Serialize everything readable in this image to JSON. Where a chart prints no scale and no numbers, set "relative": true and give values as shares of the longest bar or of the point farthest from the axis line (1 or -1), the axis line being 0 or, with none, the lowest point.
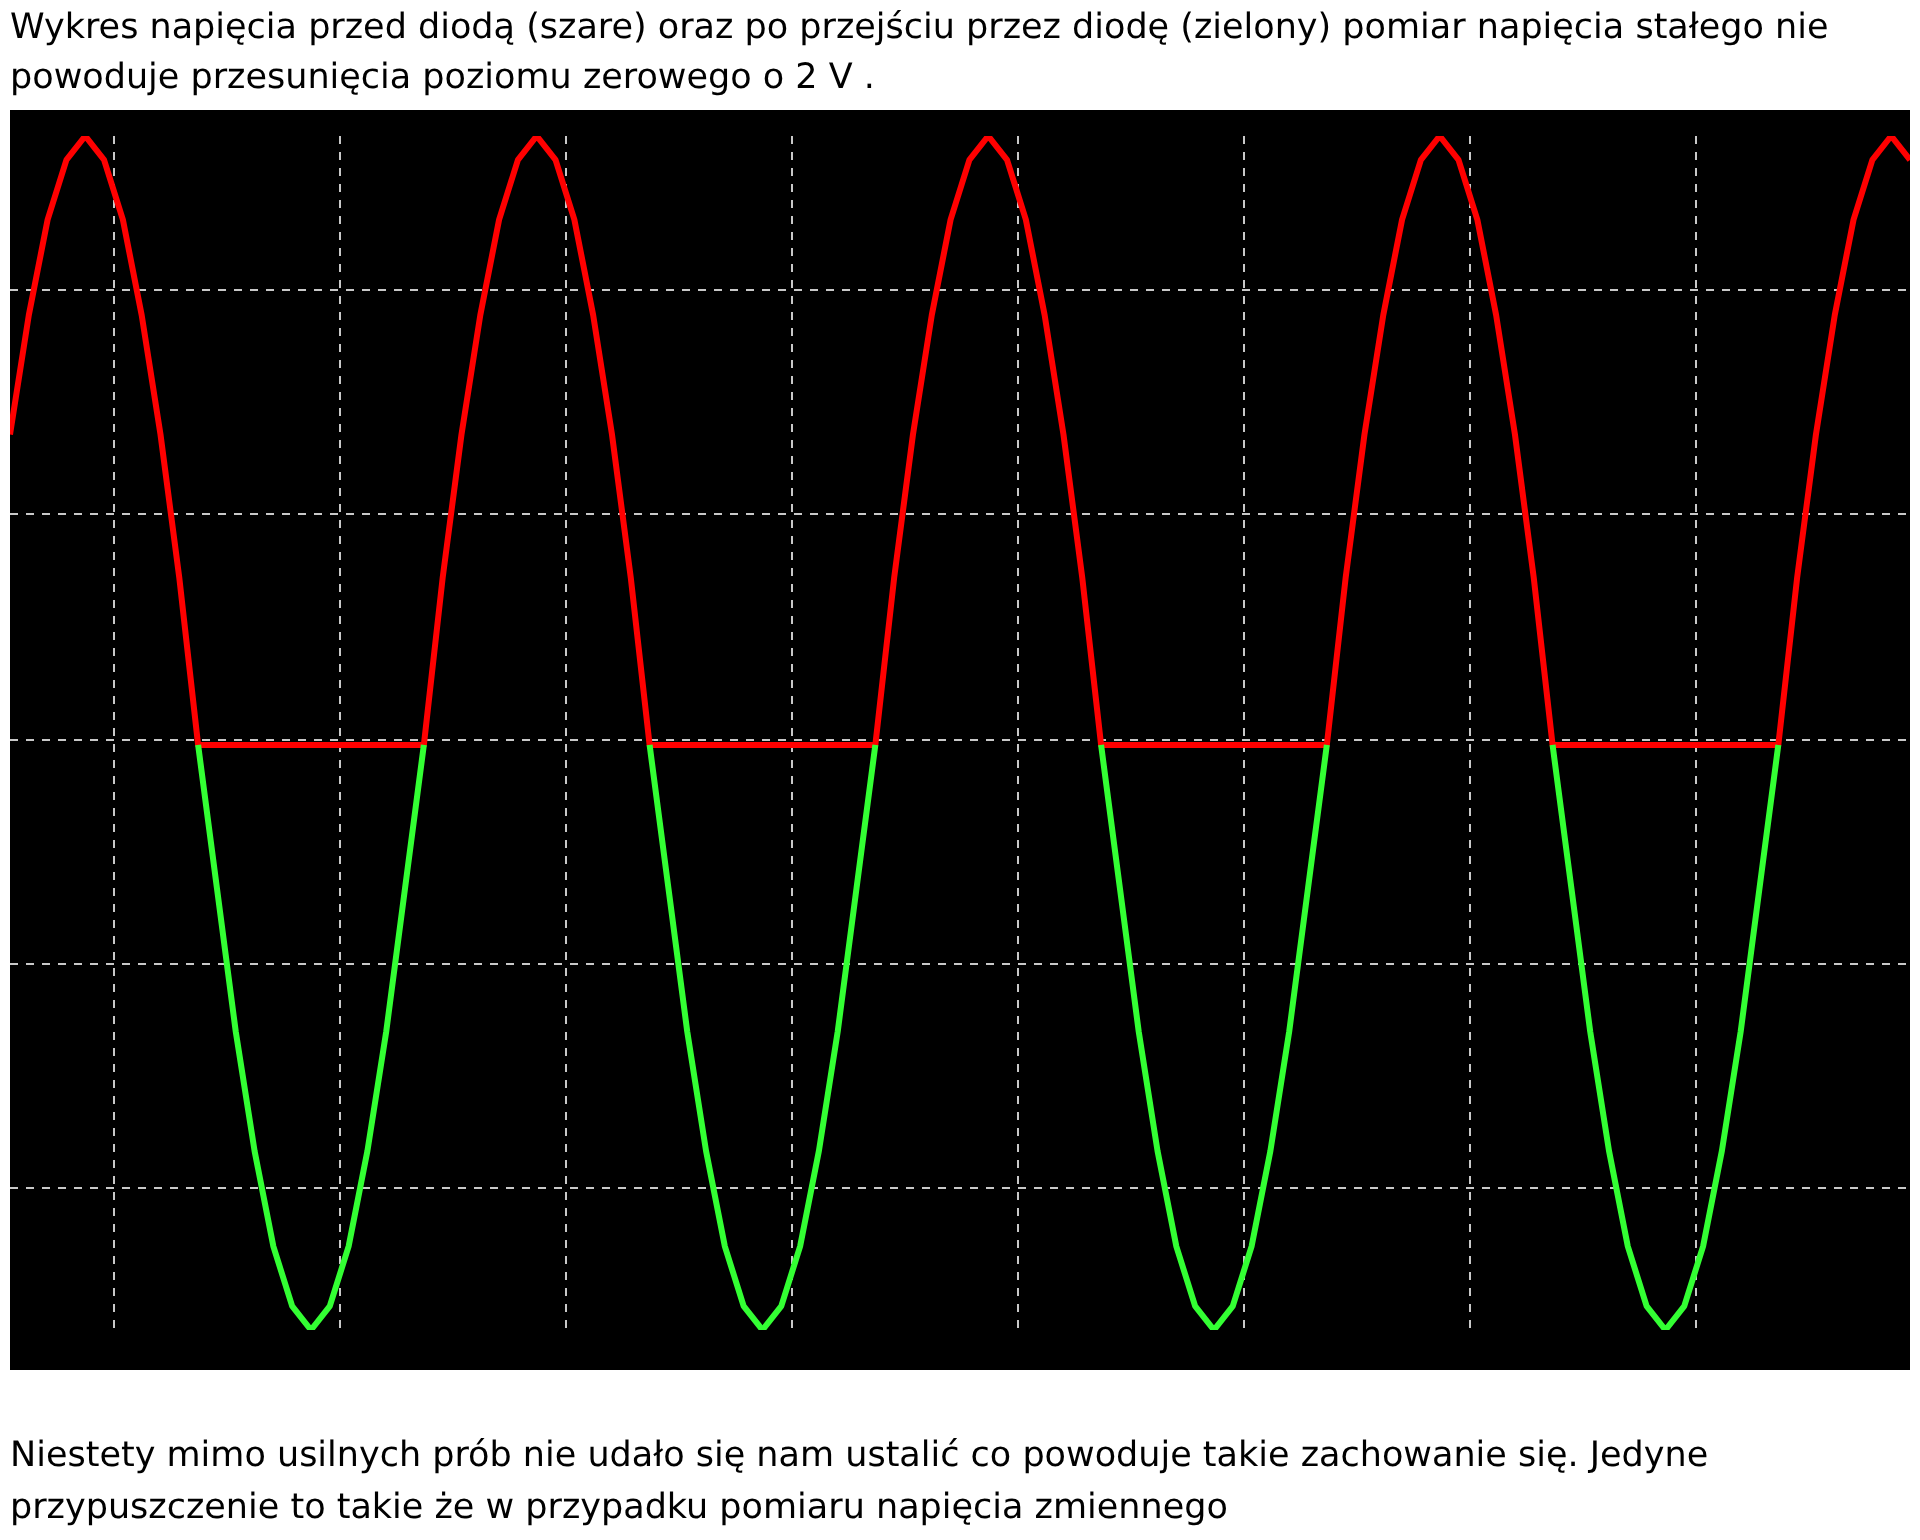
{
  "chart_data": {
    "type": "line",
    "title": "Wykres napięcia przed diodą (szare) oraz po przejściu przez diodę (zielony) pomiar napięcia stałego nie powoduje przesunięcia poziomu zerowego o 2 V .",
    "annotations": [
      "Niestety mimo usilnych prób nie udało się nam ustalić co powoduje takie zachowanie się. Jedyne przypuszczenie to takie że w przypadku pomiaru napięcia zmiennego"
    ],
    "relative": true,
    "grid": true,
    "legend": false,
    "categories": [
      null,
      null,
      null,
      null,
      null,
      null,
      null,
      null,
      null,
      null,
      null,
      null,
      null,
      null,
      null,
      null,
      null,
      null,
      null,
      null,
      null,
      null,
      null,
      null,
      null,
      null,
      null,
      null,
      null,
      null,
      null,
      null,
      null,
      null,
      null,
      null,
      null,
      null,
      null,
      null,
      null,
      null,
      null,
      null,
      null,
      null,
      null,
      null,
      null,
      null,
      null,
      null,
      null,
      null,
      null,
      null,
      null,
      null,
      null,
      null,
      null,
      null,
      null,
      null,
      null,
      null,
      null,
      null,
      null,
      null,
      null,
      null,
      null,
      null,
      null,
      null,
      null,
      null,
      null,
      null,
      null,
      null,
      null,
      null,
      null,
      null,
      null,
      null,
      null,
      null,
      null,
      null,
      null,
      null,
      null,
      null,
      null,
      null,
      null,
      null,
      null,
      null
    ],
    "series": [
      {
        "color": "#ff0000",
        "values": [
          0.75,
          0.85,
          0.93,
          0.98,
          1,
          0.98,
          0.93,
          0.85,
          0.75,
          0.63,
          0.49,
          0.49,
          0.49,
          0.49,
          0.49,
          0.49,
          0.49,
          0.49,
          0.49,
          0.49,
          0.49,
          0.49,
          0.49,
          0.63,
          0.75,
          0.85,
          0.93,
          0.98,
          1,
          0.98,
          0.93,
          0.85,
          0.75,
          0.63,
          0.49,
          0.49,
          0.49,
          0.49,
          0.49,
          0.49,
          0.49,
          0.49,
          0.49,
          0.49,
          0.49,
          0.49,
          0.49,
          0.63,
          0.75,
          0.85,
          0.93,
          0.98,
          1,
          0.98,
          0.93,
          0.85,
          0.75,
          0.63,
          0.49,
          0.49,
          0.49,
          0.49,
          0.49,
          0.49,
          0.49,
          0.49,
          0.49,
          0.49,
          0.49,
          0.49,
          0.49,
          0.63,
          0.75,
          0.85,
          0.93,
          0.98,
          1,
          0.98,
          0.93,
          0.85,
          0.75,
          0.63,
          0.49,
          0.49,
          0.49,
          0.49,
          0.49,
          0.49,
          0.49,
          0.49,
          0.49,
          0.49,
          0.49,
          0.49,
          0.49,
          0.63,
          0.75,
          0.85,
          0.93,
          0.98,
          1,
          0.98
        ]
      },
      {
        "color": "#33ff33",
        "values": [
          null,
          null,
          null,
          null,
          null,
          null,
          null,
          null,
          null,
          null,
          0.49,
          0.37,
          0.25,
          0.15,
          0.07,
          0.02,
          0,
          0.02,
          0.07,
          0.15,
          0.25,
          0.37,
          0.49,
          null,
          null,
          null,
          null,
          null,
          null,
          null,
          null,
          null,
          null,
          null,
          0.49,
          0.37,
          0.25,
          0.15,
          0.07,
          0.02,
          0,
          0.02,
          0.07,
          0.15,
          0.25,
          0.37,
          0.49,
          null,
          null,
          null,
          null,
          null,
          null,
          null,
          null,
          null,
          null,
          null,
          0.49,
          0.37,
          0.25,
          0.15,
          0.07,
          0.02,
          0,
          0.02,
          0.07,
          0.15,
          0.25,
          0.37,
          0.49,
          null,
          null,
          null,
          null,
          null,
          null,
          null,
          null,
          null,
          null,
          null,
          0.49,
          0.37,
          0.25,
          0.15,
          0.07,
          0.02,
          0,
          0.02,
          0.07,
          0.15,
          0.25,
          0.37,
          0.49,
          null,
          null,
          null,
          null,
          null,
          null,
          null
        ]
      }
    ]
  }
}
